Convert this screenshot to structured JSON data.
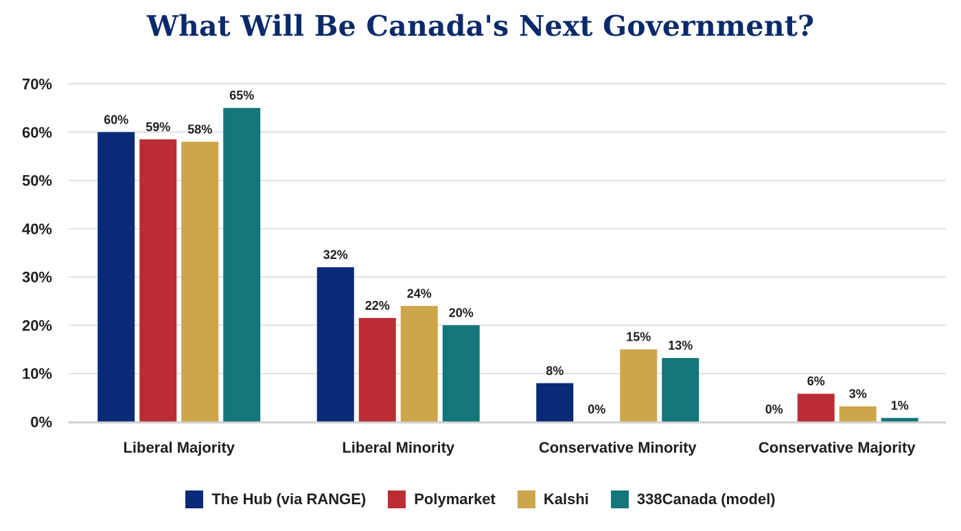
{
  "chart_data": {
    "type": "bar",
    "title": "What Will Be Canada's Next Government?",
    "xlabel": "",
    "ylabel": "",
    "ylim": [
      0,
      70
    ],
    "yticks": [
      "0%",
      "10%",
      "20%",
      "30%",
      "40%",
      "50%",
      "60%",
      "70%"
    ],
    "ytick_values": [
      0,
      10,
      20,
      30,
      40,
      50,
      60,
      70
    ],
    "categories": [
      "Liberal Majority",
      "Liberal Minority",
      "Conservative Minority",
      "Conservative Majority"
    ],
    "series": [
      {
        "name": "The Hub (via RANGE)",
        "color": "#0a2a78",
        "values": [
          60,
          32,
          8,
          0
        ],
        "labels": [
          "60%",
          "32%",
          "8%",
          "0%"
        ]
      },
      {
        "name": "Polymarket",
        "color": "#bb2d33",
        "values": [
          58.5,
          21.5,
          0,
          5.8
        ],
        "labels": [
          "59%",
          "22%",
          "0%",
          "6%"
        ]
      },
      {
        "name": "Kalshi",
        "color": "#cda64c",
        "values": [
          58,
          24,
          15,
          3.2
        ],
        "labels": [
          "58%",
          "24%",
          "15%",
          "3%"
        ]
      },
      {
        "name": "338Canada (model)",
        "color": "#12767a",
        "values": [
          65,
          20,
          13.2,
          0.8
        ],
        "labels": [
          "65%",
          "20%",
          "13%",
          "1%"
        ]
      }
    ],
    "grid": true,
    "legend_position": "bottom"
  }
}
